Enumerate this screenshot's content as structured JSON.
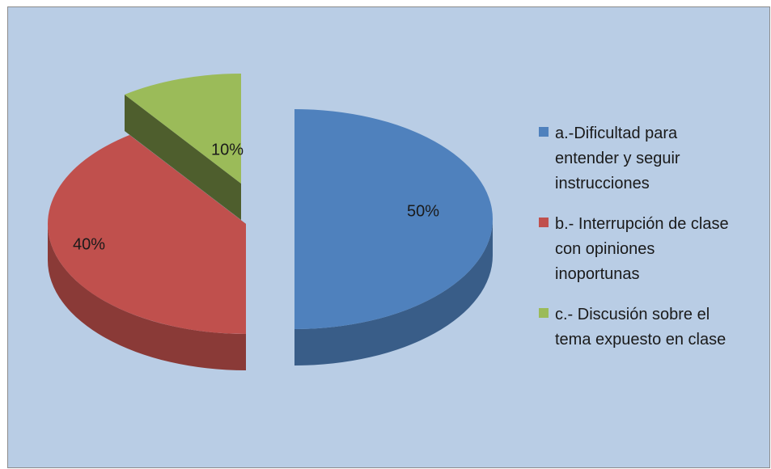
{
  "chart_data": {
    "type": "pie",
    "title": "",
    "categories": [
      "a.-Dificultad para entender y seguir instrucciones",
      "b.- Interrupción de clase con opiniones inoportunas",
      "c.- Discusión sobre el tema expuesto en clase"
    ],
    "values": [
      50,
      40,
      10
    ],
    "labels": [
      "50%",
      "40%",
      "10%"
    ],
    "colors": [
      "#4f81bd",
      "#c0504d",
      "#9bbb59"
    ],
    "legend_position": "right",
    "exploded": true,
    "style": "3d"
  },
  "legend": {
    "items": [
      {
        "lines": [
          "a.-Dificultad para",
          "entender y seguir",
          "instrucciones"
        ],
        "color": "#4f81bd"
      },
      {
        "lines": [
          "b.- Interrupción de clase",
          "con opiniones",
          "inoportunas"
        ],
        "color": "#c0504d"
      },
      {
        "lines": [
          "c.- Discusión sobre el",
          "tema expuesto en clase"
        ],
        "color": "#9bbb59"
      }
    ]
  }
}
